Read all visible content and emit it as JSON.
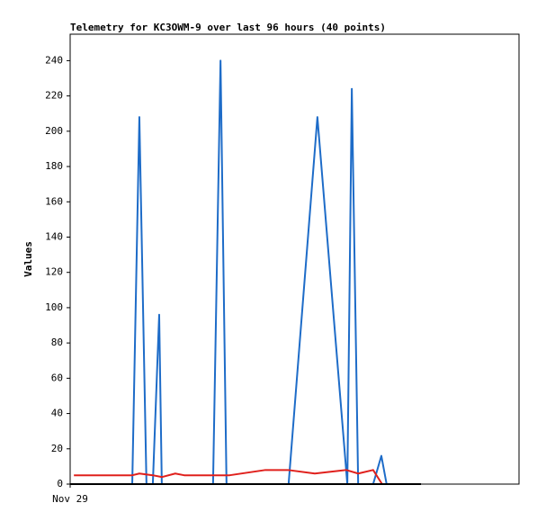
{
  "chart_data": {
    "type": "line",
    "title": "Telemetry for KC3OWM-9 over last 96 hours (40 points)",
    "y_label": "Values",
    "xlim": [
      0,
      120
    ],
    "xticks": [
      {
        "value": 0,
        "label": "Nov 29"
      }
    ],
    "ylim": [
      0,
      255
    ],
    "yticks": [
      0,
      20,
      40,
      60,
      80,
      100,
      120,
      140,
      160,
      180,
      200,
      220,
      240
    ],
    "series": [
      {
        "color": "#1e6cc8",
        "x": [
          16.6,
          18.5,
          20.4,
          22.1,
          23.8,
          24.5,
          38.2,
          40.2,
          41.8,
          58.4,
          66.1,
          74.1,
          75.3,
          77.0,
          81.0,
          83.2,
          84.6
        ],
        "values": [
          0,
          208,
          0,
          0,
          96,
          0,
          0,
          240,
          0,
          0,
          208,
          0,
          224,
          0,
          0,
          16,
          0
        ]
      },
      {
        "color": "#e0201c",
        "x": [
          1.0,
          16.6,
          18.5,
          22.1,
          24.5,
          28.1,
          30.5,
          42.6,
          52.2,
          58.2,
          65.4,
          73.8,
          77.0,
          81.0,
          83.4
        ],
        "values": [
          5,
          5,
          6,
          5,
          4,
          6,
          5,
          5,
          8,
          8,
          6,
          8,
          6,
          8,
          0
        ]
      },
      {
        "color": "#000000",
        "x": [
          0,
          93.8
        ],
        "values": [
          0,
          0
        ]
      }
    ]
  }
}
